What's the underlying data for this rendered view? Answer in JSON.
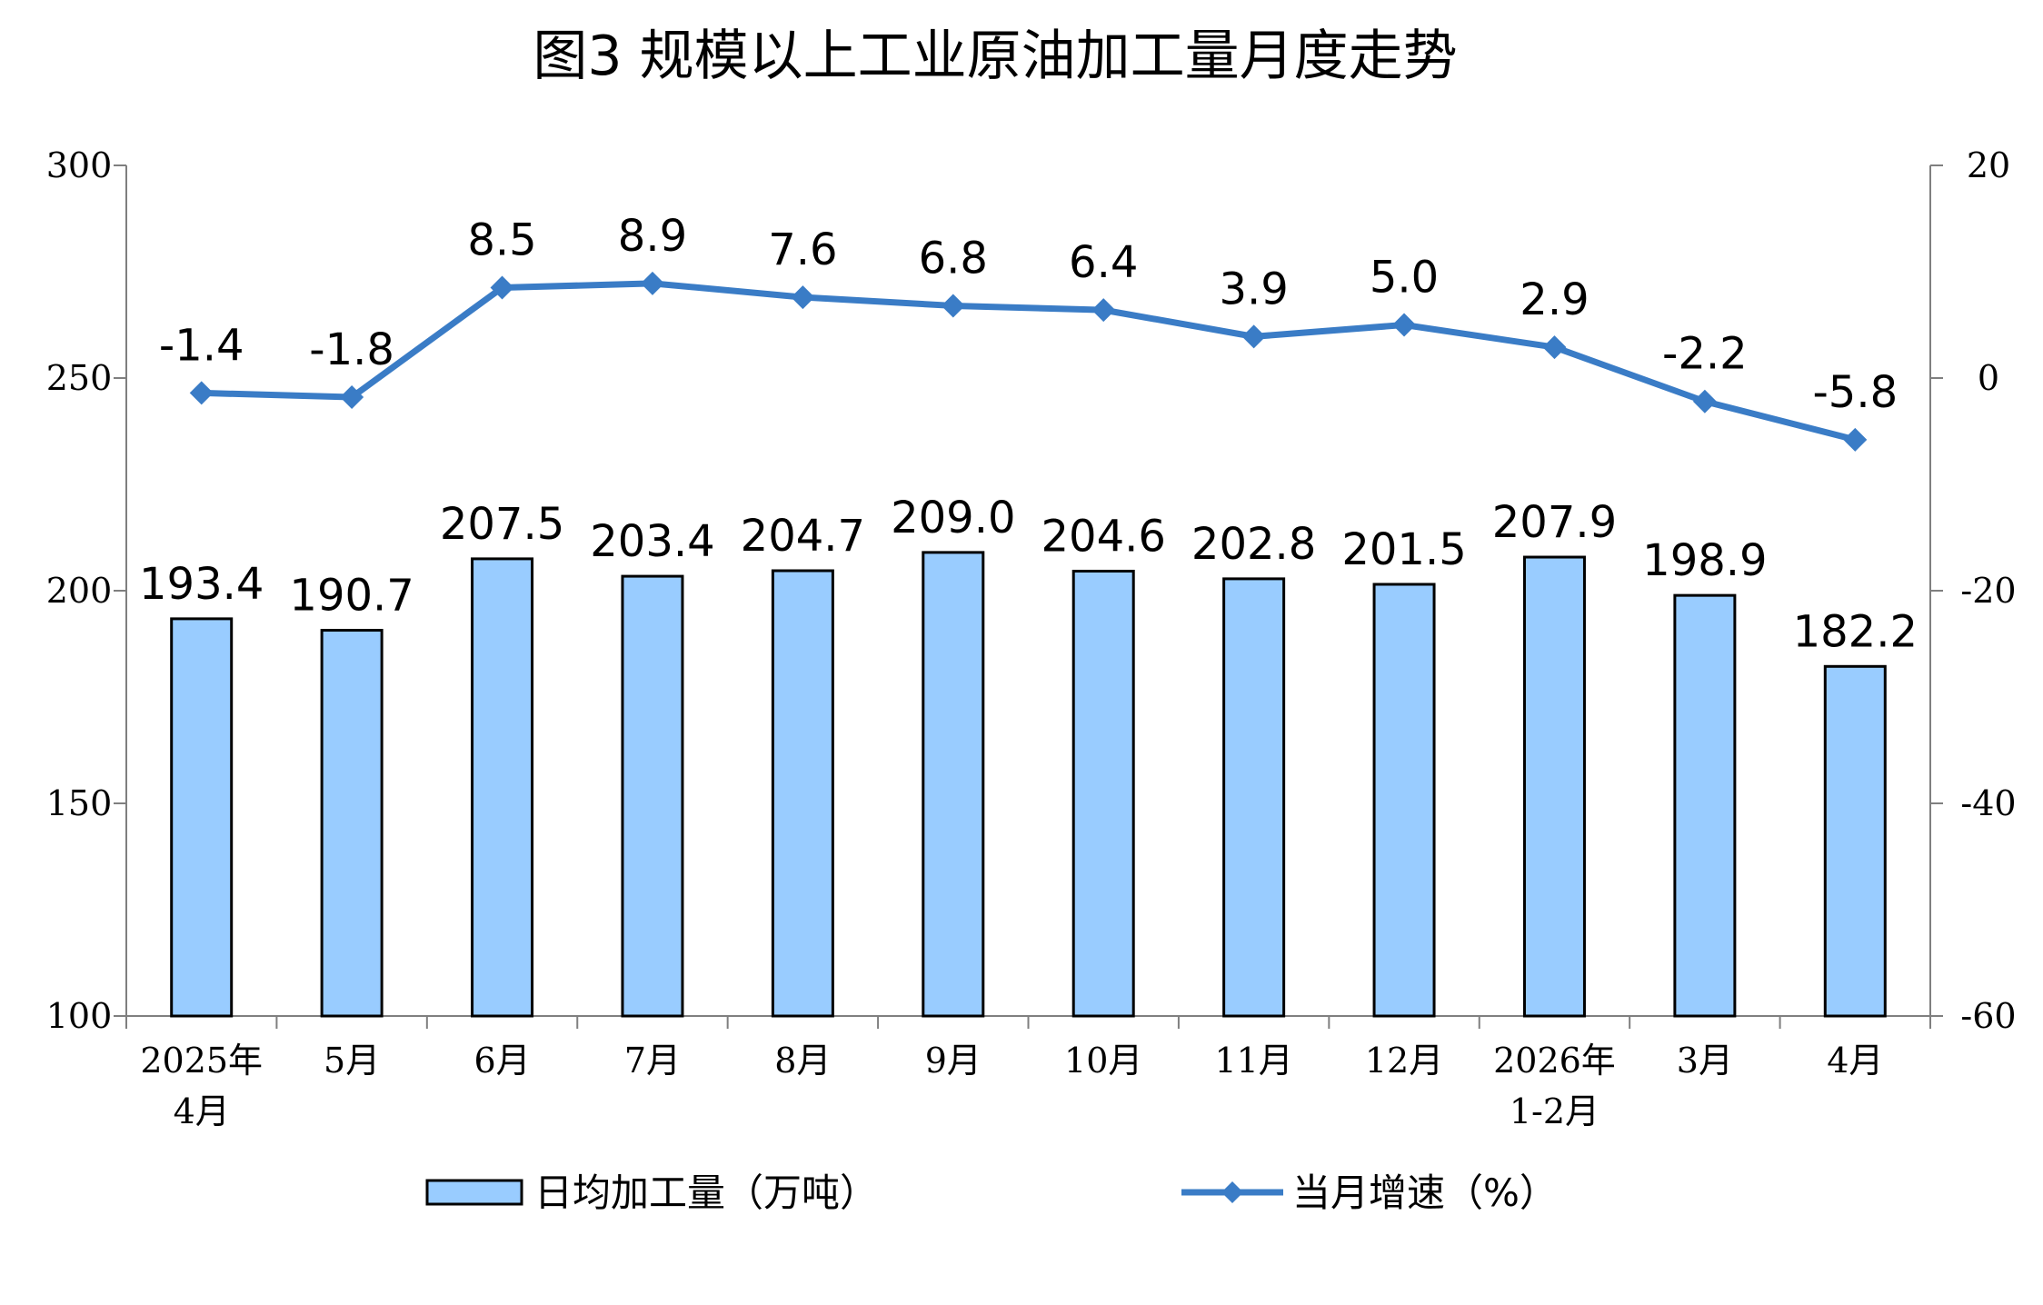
{
  "chart_data": {
    "type": "bar+line",
    "title": "图3  规模以上工业原油加工量月度走势",
    "categories": [
      [
        "2025年",
        "4月"
      ],
      [
        "5月"
      ],
      [
        "6月"
      ],
      [
        "7月"
      ],
      [
        "8月"
      ],
      [
        "9月"
      ],
      [
        "10月"
      ],
      [
        "11月"
      ],
      [
        "12月"
      ],
      [
        "2026年",
        "1-2月"
      ],
      [
        "3月"
      ],
      [
        "4月"
      ]
    ],
    "series": [
      {
        "name": "日均加工量（万吨）",
        "type": "bar",
        "axis": "left",
        "color": "#99CCFF",
        "values": [
          193.4,
          190.7,
          207.5,
          203.4,
          204.7,
          209.0,
          204.6,
          202.8,
          201.5,
          207.9,
          198.9,
          182.2
        ],
        "labels": [
          "193.4",
          "190.7",
          "207.5",
          "203.4",
          "204.7",
          "209.0",
          "204.6",
          "202.8",
          "201.5",
          "207.9",
          "198.9",
          "182.2"
        ]
      },
      {
        "name": "当月增速（%）",
        "type": "line",
        "axis": "right",
        "color": "#3A7CC6",
        "marker": "diamond",
        "values": [
          -1.4,
          -1.8,
          8.5,
          8.9,
          7.6,
          6.8,
          6.4,
          3.9,
          5.0,
          2.9,
          -2.2,
          -5.8
        ],
        "labels": [
          "-1.4",
          "-1.8",
          "8.5",
          "8.9",
          "7.6",
          "6.8",
          "6.4",
          "3.9",
          "5.0",
          "2.9",
          "-2.2",
          "-5.8"
        ]
      }
    ],
    "y_left": {
      "range": [
        100,
        300
      ],
      "ticks": [
        100,
        150,
        200,
        250,
        300
      ],
      "tick_labels": [
        "100",
        "150",
        "200",
        "250",
        "300"
      ]
    },
    "y_right": {
      "range": [
        -60,
        20
      ],
      "ticks": [
        -60,
        -40,
        -20,
        0,
        20
      ],
      "tick_labels": [
        "-60",
        "-40",
        "-20",
        "0",
        "20"
      ]
    },
    "grid": false,
    "legend": "bottom"
  }
}
